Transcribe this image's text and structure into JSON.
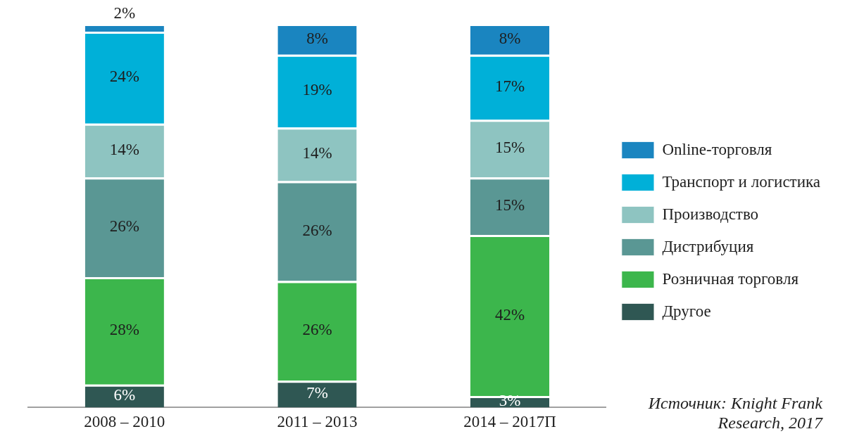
{
  "chart_data": {
    "type": "bar",
    "stacked": true,
    "grid": false,
    "legend": "right",
    "data_labels": true,
    "tick_labels": "x",
    "ylim": [
      0,
      100
    ],
    "categories": [
      "2008 – 2010",
      "2011 – 2013",
      "2014 – 2017П"
    ],
    "series": [
      {
        "name": "Другое",
        "color": "#2f5753",
        "values": [
          6,
          7,
          3
        ],
        "value_labels": [
          "6%",
          "7%",
          "3%"
        ]
      },
      {
        "name": "Розничная торговля",
        "color": "#3cb64c",
        "values": [
          28,
          26,
          42
        ],
        "value_labels": [
          "28%",
          "26%",
          "42%"
        ]
      },
      {
        "name": "Дистрибуция",
        "color": "#5a9794",
        "values": [
          26,
          26,
          15
        ],
        "value_labels": [
          "26%",
          "26%",
          "15%"
        ]
      },
      {
        "name": "Производство",
        "color": "#8ec4c1",
        "values": [
          14,
          14,
          15
        ],
        "value_labels": [
          "14%",
          "14%",
          "15%"
        ]
      },
      {
        "name": "Транспорт и логистика",
        "color": "#00b0d8",
        "values": [
          24,
          19,
          17
        ],
        "value_labels": [
          "24%",
          "19%",
          "17%"
        ]
      },
      {
        "name": "Online-торговля",
        "color": "#1a85c0",
        "values": [
          2,
          8,
          8
        ],
        "value_labels": [
          "2%",
          "8%",
          "8%"
        ]
      }
    ],
    "annotation": "Источник: Knight Frank Research, 2017"
  }
}
